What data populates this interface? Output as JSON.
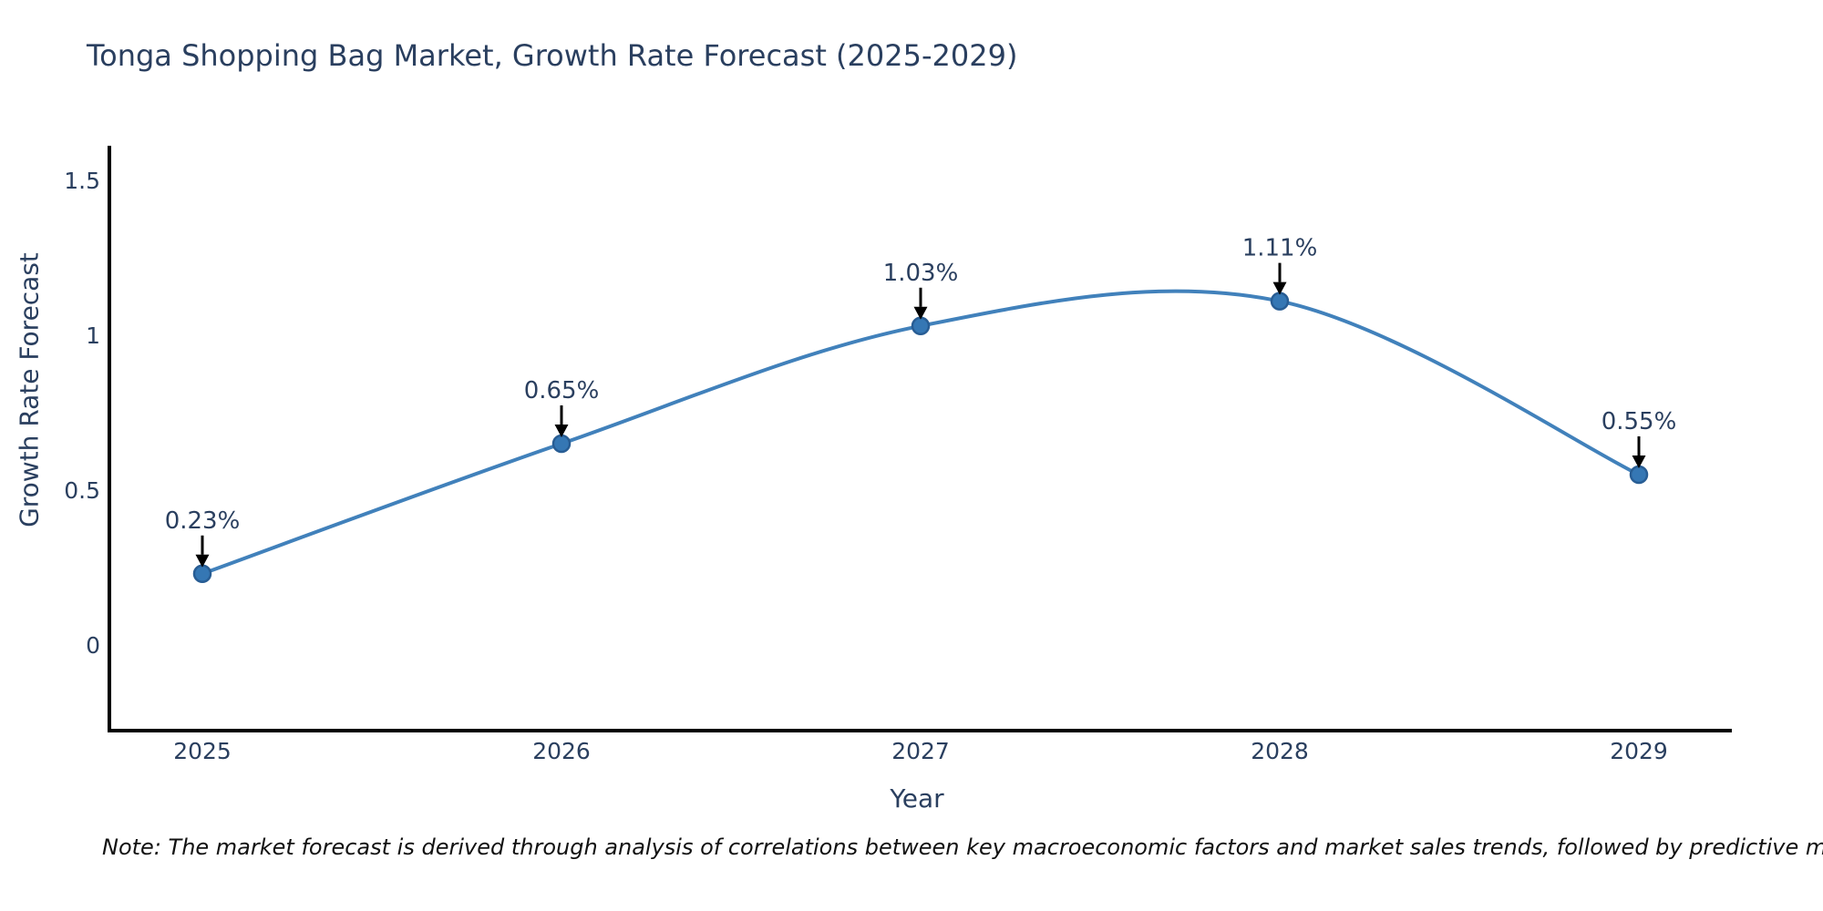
{
  "title": "Tonga Shopping Bag Market, Growth Rate Forecast (2025-2029)",
  "note": "Note: The market forecast is derived through analysis of correlations between key macroeconomic factors and market sales trends, followed by predictive modeling to project future sales",
  "chart_data": {
    "type": "line",
    "title": "Tonga Shopping Bag Market, Growth Rate Forecast (2025-2029)",
    "xlabel": "Year",
    "ylabel": "Growth Rate Forecast",
    "categories": [
      "2025",
      "2026",
      "2027",
      "2028",
      "2029"
    ],
    "x": [
      2025,
      2026,
      2027,
      2028,
      2029
    ],
    "values": [
      0.23,
      0.65,
      1.03,
      1.11,
      0.55
    ],
    "point_labels": [
      "0.23%",
      "0.65%",
      "1.03%",
      "1.11%",
      "0.55%"
    ],
    "y_ticks": [
      "0",
      "0.5",
      "1",
      "1.5"
    ],
    "y_tick_values": [
      0,
      0.5,
      1,
      1.5
    ],
    "ylim": [
      -0.28,
      1.6
    ],
    "grid": false,
    "legend": "none",
    "line_shape": "spline",
    "colors": {
      "line": "#4181bb",
      "marker_fill": "#3577b4",
      "marker_edge": "#285d94",
      "axis": "#000000",
      "text": "#2a3f5f",
      "annotation_text": "#2a3f5f",
      "arrow": "#000000",
      "background": "#ffffff"
    }
  }
}
